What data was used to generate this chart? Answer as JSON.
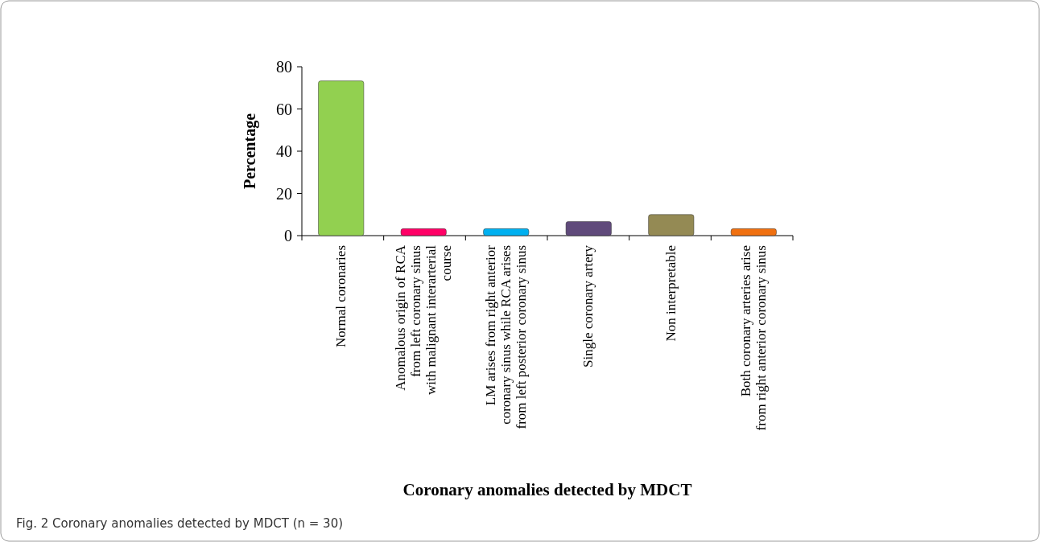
{
  "chart_data": {
    "type": "bar",
    "ylabel": "Percentage",
    "xlabel": "Coronary anomalies detected by MDCT",
    "categories": [
      "Normal coronaries",
      "Anomalous origin of RCA\nfrom left coronary sinus\nwith malignant interarterial\ncourse",
      "LM arises from right anterior\ncoronary sinus while RCA arises\nfrom left posterior coronary sinus",
      "Single coronary artery",
      "Non interpretable",
      "Both coronary arteries arise\nfrom right anterior coronary sinus"
    ],
    "values": [
      73.3,
      3.3,
      3.3,
      6.7,
      10,
      3.3
    ],
    "colors": [
      "#92d050",
      "#ff0066",
      "#00b0f0",
      "#604a7b",
      "#948a54",
      "#f07010"
    ],
    "ylim": [
      0,
      80
    ],
    "yticks": [
      0,
      20,
      40,
      60,
      80
    ],
    "grid": false,
    "annotations": [
      "Fig. 2 Coronary anomalies detected by MDCT (n = 30)"
    ]
  }
}
